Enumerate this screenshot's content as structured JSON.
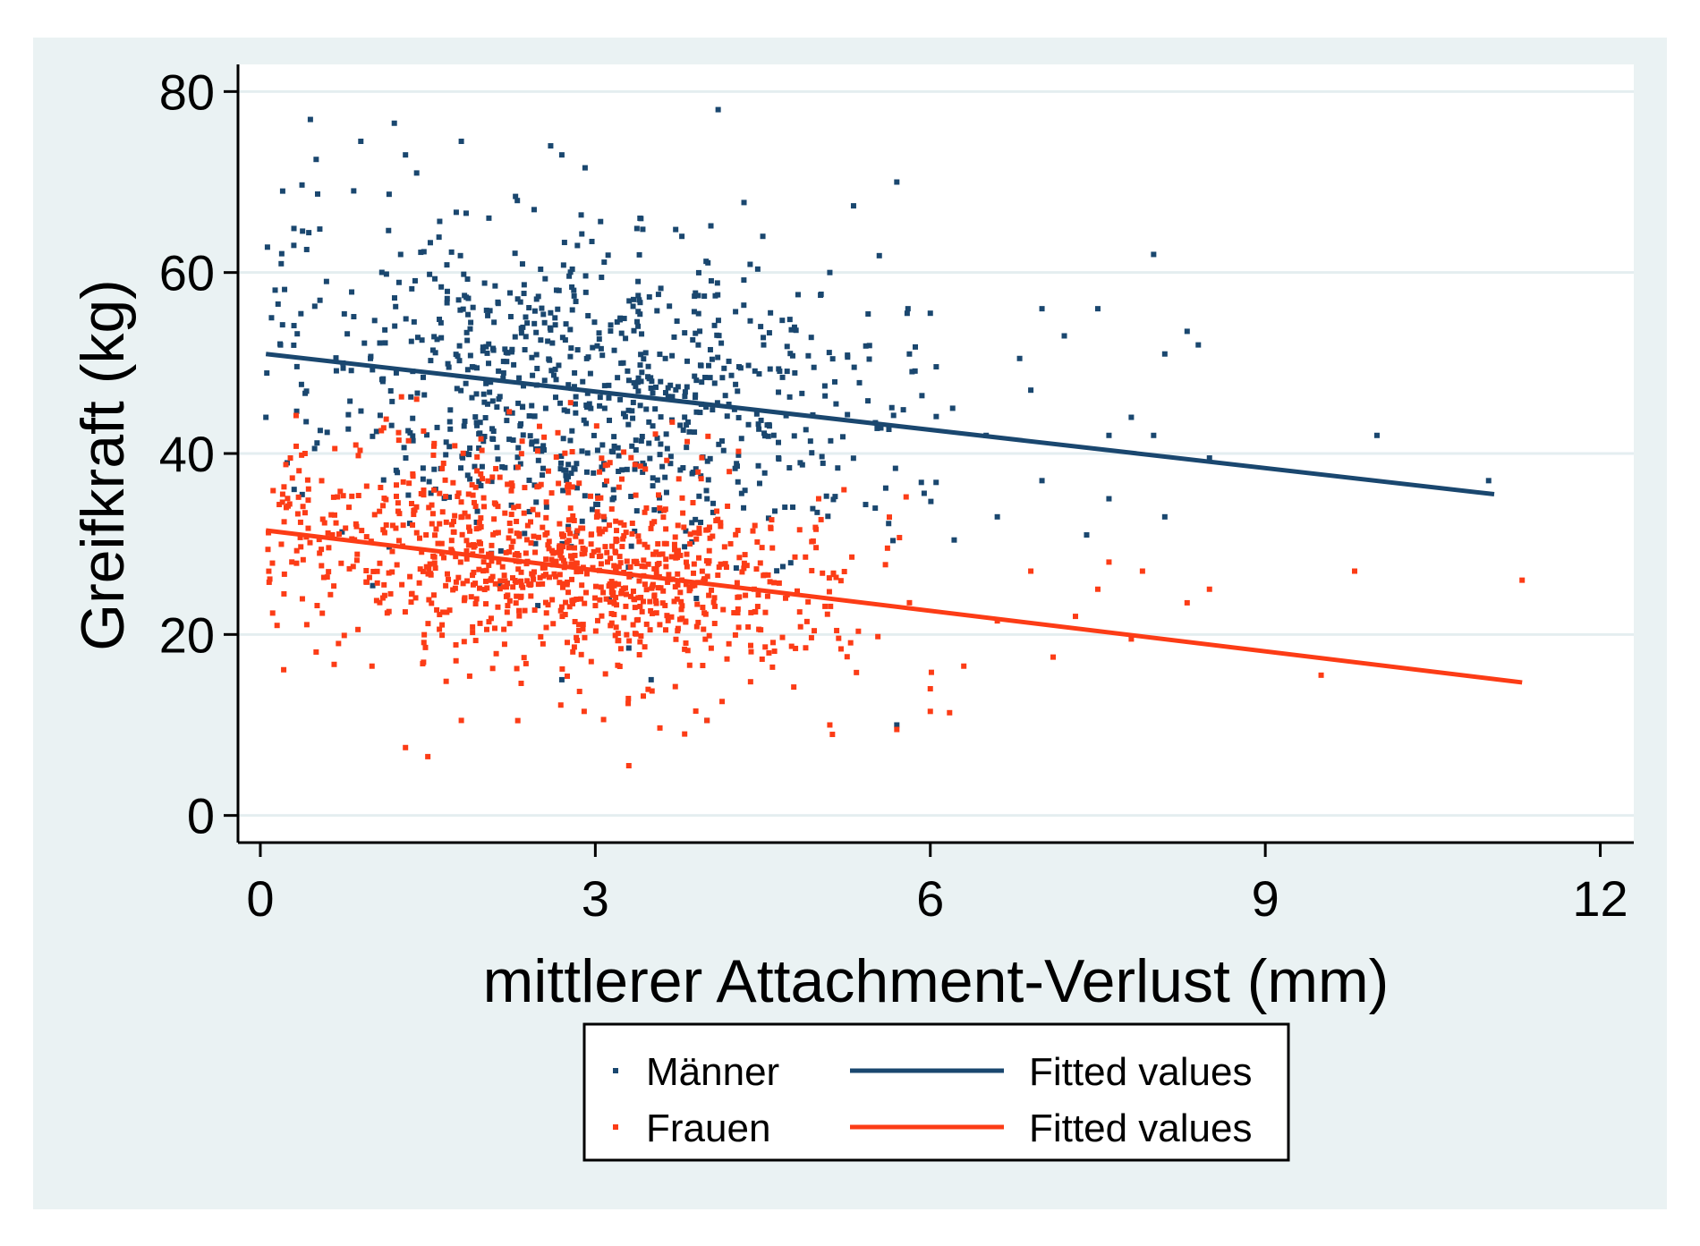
{
  "chart_data": {
    "type": "scatter",
    "title": "",
    "xlabel": "mittlerer Attachment-Verlust (mm)",
    "ylabel": "Greifkraft (kg)",
    "xlim": [
      -0.2,
      12.3
    ],
    "ylim": [
      -3,
      83
    ],
    "x_ticks": [
      0,
      3,
      6,
      9,
      12
    ],
    "y_ticks": [
      0,
      20,
      40,
      60,
      80
    ],
    "grid": "horizontal",
    "legend_position": "bottom",
    "colors": {
      "maenner": "#1a476f",
      "frauen": "#fc3c16",
      "plot_region_bg": "#eaf2f3",
      "plot_bg": "#ffffff",
      "gridline": "#e4eef0"
    },
    "series": [
      {
        "name": "Männer",
        "kind": "scatter",
        "color": "#1a476f",
        "cloud": {
          "n": 820,
          "x_center": 2.9,
          "x_spread": 1.35,
          "slope": -1.4,
          "intercept": 51,
          "residual_sd": 8.5,
          "seed": 11
        },
        "points": [
          [
            0.05,
            44
          ],
          [
            0.1,
            55
          ],
          [
            0.2,
            69
          ],
          [
            0.3,
            63
          ],
          [
            0.5,
            72.5
          ],
          [
            0.9,
            74.5
          ],
          [
            1.2,
            76.5
          ],
          [
            1.3,
            73
          ],
          [
            1.4,
            71
          ],
          [
            1.8,
            74.5
          ],
          [
            2.6,
            74
          ],
          [
            2.7,
            73
          ],
          [
            4.1,
            78
          ],
          [
            5.7,
            70
          ],
          [
            3.4,
            66
          ],
          [
            4.5,
            64
          ],
          [
            5.1,
            60
          ],
          [
            5.8,
            56
          ],
          [
            6.0,
            55.5
          ],
          [
            6.2,
            45
          ],
          [
            6.5,
            42
          ],
          [
            6.8,
            50.5
          ],
          [
            7.0,
            56
          ],
          [
            6.9,
            47
          ],
          [
            7.2,
            53
          ],
          [
            7.5,
            56
          ],
          [
            7.6,
            42
          ],
          [
            7.8,
            44
          ],
          [
            8.0,
            62
          ],
          [
            8.1,
            51
          ],
          [
            8.3,
            53.5
          ],
          [
            8.4,
            52
          ],
          [
            8.0,
            42
          ],
          [
            8.1,
            33
          ],
          [
            8.5,
            39.5
          ],
          [
            10.0,
            42
          ],
          [
            11.0,
            37
          ],
          [
            7.6,
            35
          ],
          [
            7.4,
            31
          ],
          [
            6.6,
            33
          ],
          [
            7.0,
            37
          ],
          [
            3.3,
            18.5
          ],
          [
            2.7,
            15
          ],
          [
            3.5,
            15
          ],
          [
            4.0,
            10.5
          ],
          [
            5.7,
            10
          ]
        ]
      },
      {
        "name": "Frauen",
        "kind": "scatter",
        "color": "#fc3c16",
        "cloud": {
          "n": 1000,
          "x_center": 2.6,
          "x_spread": 1.25,
          "slope": -1.45,
          "intercept": 31.5,
          "residual_sd": 5.8,
          "seed": 23
        },
        "points": [
          [
            0.15,
            21
          ],
          [
            0.2,
            35.5
          ],
          [
            0.4,
            40
          ],
          [
            0.7,
            19
          ],
          [
            1.0,
            16.5
          ],
          [
            1.3,
            7.5
          ],
          [
            1.5,
            6.5
          ],
          [
            1.8,
            10.5
          ],
          [
            2.9,
            11.5
          ],
          [
            3.3,
            5.5
          ],
          [
            3.8,
            9
          ],
          [
            4.0,
            10.5
          ],
          [
            5.1,
            10
          ],
          [
            5.7,
            9.5
          ],
          [
            6.0,
            14
          ],
          [
            6.0,
            11.5
          ],
          [
            6.3,
            16.5
          ],
          [
            6.6,
            21.5
          ],
          [
            6.9,
            27
          ],
          [
            7.1,
            17.5
          ],
          [
            7.3,
            22
          ],
          [
            7.5,
            25
          ],
          [
            7.6,
            28
          ],
          [
            7.8,
            19.5
          ],
          [
            8.3,
            23.5
          ],
          [
            8.5,
            25
          ],
          [
            7.9,
            27
          ],
          [
            9.5,
            15.5
          ],
          [
            9.8,
            27
          ],
          [
            11.3,
            26
          ],
          [
            1.4,
            46
          ],
          [
            2.5,
            43
          ],
          [
            4.2,
            38
          ],
          [
            5.0,
            35
          ]
        ]
      },
      {
        "name": "Fitted values",
        "kind": "line",
        "color": "#1a476f",
        "x": [
          0.05,
          11.05
        ],
        "y": [
          51,
          35.5
        ]
      },
      {
        "name": "Fitted values",
        "kind": "line",
        "color": "#fc3c16",
        "x": [
          0.05,
          11.3
        ],
        "y": [
          31.5,
          14.7
        ]
      }
    ],
    "legend": [
      {
        "label": "Männer",
        "marker": "dot",
        "color": "#1a476f"
      },
      {
        "label": "Fitted values",
        "marker": "line",
        "color": "#1a476f"
      },
      {
        "label": "Frauen",
        "marker": "dot",
        "color": "#fc3c16"
      },
      {
        "label": "Fitted values",
        "marker": "line",
        "color": "#fc3c16"
      }
    ]
  }
}
